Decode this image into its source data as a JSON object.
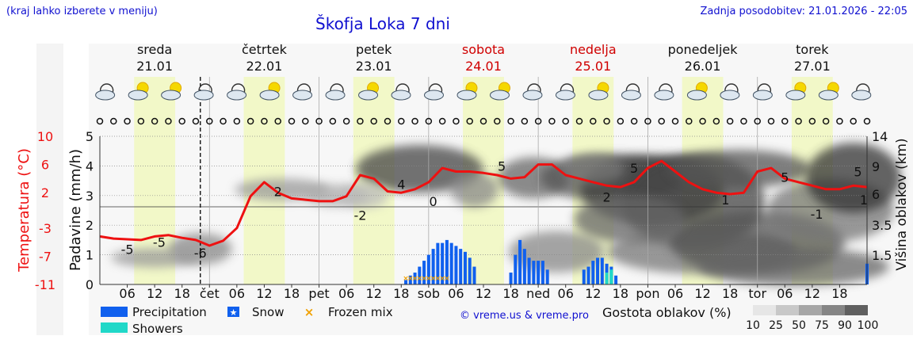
{
  "header": {
    "note": "(kraj lahko izberete v meniju)",
    "title": "Škofja Loka 7 dni",
    "updated": "Zadnja posodobitev: 21.01.2026 - 22:05"
  },
  "colors": {
    "temperature": "#ee1111",
    "precipitation": "#1060ee",
    "snow": "#1060ee",
    "showers": "#20d8c8",
    "frozen_mix": "#f0a000",
    "title": "#1010d0",
    "weekend": "#d00000",
    "day_band": "#f2f8c8"
  },
  "chart_data": {
    "type": "line",
    "title": "Škofja Loka 7 dni",
    "days": [
      {
        "name": "sreda",
        "date": "21.01",
        "weekend": false
      },
      {
        "name": "četrtek",
        "date": "22.01",
        "weekend": false
      },
      {
        "name": "petek",
        "date": "23.01",
        "weekend": false
      },
      {
        "name": "sobota",
        "date": "24.01",
        "weekend": true
      },
      {
        "name": "nedelja",
        "date": "25.01",
        "weekend": true
      },
      {
        "name": "ponedeljek",
        "date": "26.01",
        "weekend": false
      },
      {
        "name": "torek",
        "date": "27.01",
        "weekend": false
      }
    ],
    "x_tick_labels": [
      "06",
      "12",
      "18",
      "čet",
      "06",
      "12",
      "18",
      "pet",
      "06",
      "12",
      "18",
      "sob",
      "06",
      "12",
      "18",
      "ned",
      "06",
      "12",
      "18",
      "pon",
      "06",
      "12",
      "18",
      "tor",
      "06",
      "12",
      "18"
    ],
    "x_hours_start": 0,
    "x_hours_end": 168,
    "now_hour": 22,
    "left_axis": {
      "label": "Padavine (mm/h)",
      "ticks": [
        0,
        1,
        2,
        3,
        4,
        5
      ],
      "ylim": [
        0,
        5
      ]
    },
    "temp_axis": {
      "label": "Temperatura (°C)",
      "ticks": [
        -11,
        -7,
        -3,
        2,
        6,
        10
      ]
    },
    "right_axis": {
      "label": "Višina oblakov (km)",
      "ticks": [
        1.5,
        3.5,
        6.0,
        9.0,
        14
      ]
    },
    "temperature": {
      "name": "Temperatura",
      "x": [
        0,
        3,
        6,
        9,
        12,
        15,
        18,
        21,
        24,
        27,
        30,
        33,
        36,
        39,
        42,
        45,
        48,
        51,
        54,
        57,
        60,
        63,
        66,
        69,
        72,
        75,
        78,
        81,
        84,
        87,
        90,
        93,
        96,
        99,
        102,
        105,
        108,
        111,
        114,
        117,
        120,
        123,
        126,
        129,
        132,
        135,
        138,
        141,
        144,
        147,
        150,
        153,
        156,
        159,
        162,
        165,
        168
      ],
      "y": [
        -4.2,
        -4.5,
        -4.6,
        -4.7,
        -4.2,
        -4.0,
        -4.4,
        -4.7,
        -5.5,
        -4.8,
        -3.0,
        1.5,
        3.5,
        2.0,
        1.2,
        1.0,
        0.8,
        0.8,
        1.5,
        4.5,
        4.0,
        2.2,
        2.0,
        2.5,
        3.5,
        5.5,
        5.0,
        5.0,
        4.8,
        4.5,
        4.0,
        4.2,
        6.0,
        6.0,
        4.5,
        4.0,
        3.5,
        3.0,
        2.8,
        3.5,
        5.5,
        6.5,
        5.0,
        3.5,
        2.5,
        2.0,
        1.8,
        2.0,
        5.0,
        5.5,
        4.0,
        3.5,
        3.0,
        2.5,
        2.5,
        3.0,
        2.8
      ],
      "labels": [
        {
          "x": 6,
          "y": -6,
          "text": "-5"
        },
        {
          "x": 13,
          "y": -5,
          "text": "-5"
        },
        {
          "x": 22,
          "y": -6.5,
          "text": "-6"
        },
        {
          "x": 39,
          "y": 2.2,
          "text": "2"
        },
        {
          "x": 57,
          "y": -1.2,
          "text": "-2"
        },
        {
          "x": 66,
          "y": 3.2,
          "text": "4"
        },
        {
          "x": 73,
          "y": 0.8,
          "text": "0"
        },
        {
          "x": 88,
          "y": 5.8,
          "text": "5"
        },
        {
          "x": 111,
          "y": 1.4,
          "text": "2"
        },
        {
          "x": 117,
          "y": 5.5,
          "text": "5"
        },
        {
          "x": 137,
          "y": 1.0,
          "text": "1"
        },
        {
          "x": 150,
          "y": 4.2,
          "text": "5"
        },
        {
          "x": 157,
          "y": -1.0,
          "text": "-1"
        },
        {
          "x": 168,
          "y": 1.0,
          "text": "1"
        },
        {
          "x": 166,
          "y": 5.0,
          "text": "5"
        }
      ]
    },
    "precipitation": {
      "name": "Precipitation",
      "x": [
        67,
        68,
        69,
        70,
        71,
        72,
        73,
        74,
        75,
        76,
        77,
        78,
        79,
        80,
        81,
        82,
        90,
        91,
        92,
        93,
        94,
        95,
        96,
        97,
        98,
        106,
        107,
        108,
        109,
        110,
        111,
        112,
        113,
        168
      ],
      "y": [
        0.15,
        0.3,
        0.4,
        0.6,
        0.8,
        1.0,
        1.2,
        1.4,
        1.4,
        1.5,
        1.4,
        1.3,
        1.2,
        1.1,
        0.9,
        0.6,
        0.4,
        1.0,
        1.5,
        1.2,
        0.9,
        0.8,
        0.8,
        0.8,
        0.5,
        0.5,
        0.6,
        0.8,
        0.9,
        0.9,
        0.7,
        0.6,
        0.3,
        0.7
      ]
    },
    "showers": {
      "name": "Showers",
      "x": [
        111,
        112
      ],
      "y": [
        0.4,
        0.5
      ]
    },
    "frozen_mix": {
      "name": "Frozen mix",
      "x": [
        67,
        68,
        69,
        70,
        71,
        72,
        73,
        74,
        75,
        76
      ]
    },
    "legend": {
      "precipitation": "Precipitation",
      "snow": "Snow",
      "frozen_mix": "Frozen mix",
      "showers": "Showers",
      "cloud_density_title": "Gostota oblakov (%)",
      "cloud_density_ticks": [
        "10",
        "25",
        "50",
        "75",
        "90",
        "100"
      ]
    },
    "credit": "© vreme.us & vreme.pro"
  }
}
